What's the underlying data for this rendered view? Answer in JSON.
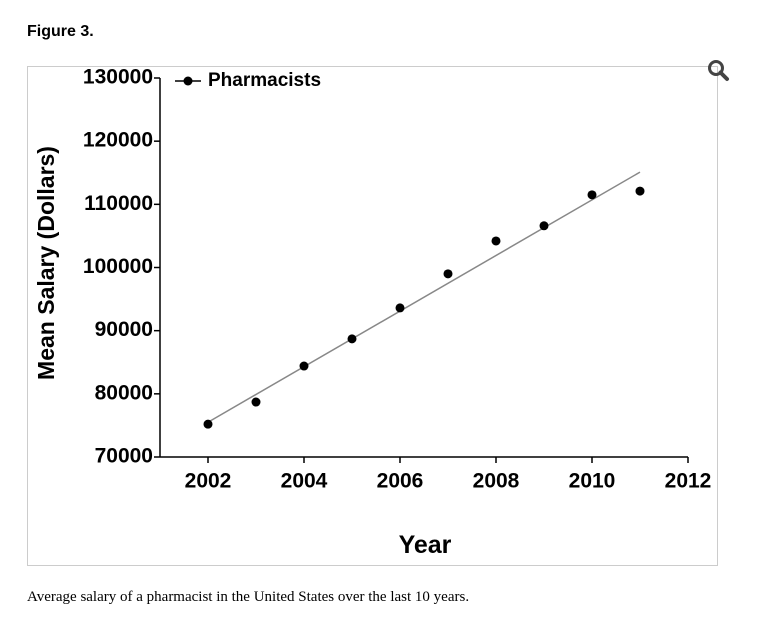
{
  "figure": {
    "title": "Figure 3.",
    "caption": "Average salary of a pharmacist in the United States over the last 10 years."
  },
  "chart_data": {
    "type": "scatter",
    "x_label": "Year",
    "y_label": "Mean Salary (Dollars)",
    "x": [
      2002,
      2003,
      2004,
      2005,
      2006,
      2007,
      2008,
      2009,
      2010,
      2011
    ],
    "series": [
      {
        "name": "Pharmacists",
        "color": "#000000",
        "values": [
          75200,
          78700,
          84400,
          88700,
          93600,
          99000,
          104200,
          106600,
          111500,
          112100
        ]
      }
    ],
    "trendline": {
      "color": "#888888",
      "x": [
        2002,
        2011
      ],
      "values": [
        75500,
        115100
      ]
    },
    "xlim": [
      2001,
      2012
    ],
    "xticks": [
      2002,
      2004,
      2006,
      2008,
      2010,
      2012
    ],
    "ylim": [
      70000,
      130000
    ],
    "yticks": [
      70000,
      80000,
      90000,
      100000,
      110000,
      120000,
      130000
    ],
    "legend": "top-left"
  }
}
